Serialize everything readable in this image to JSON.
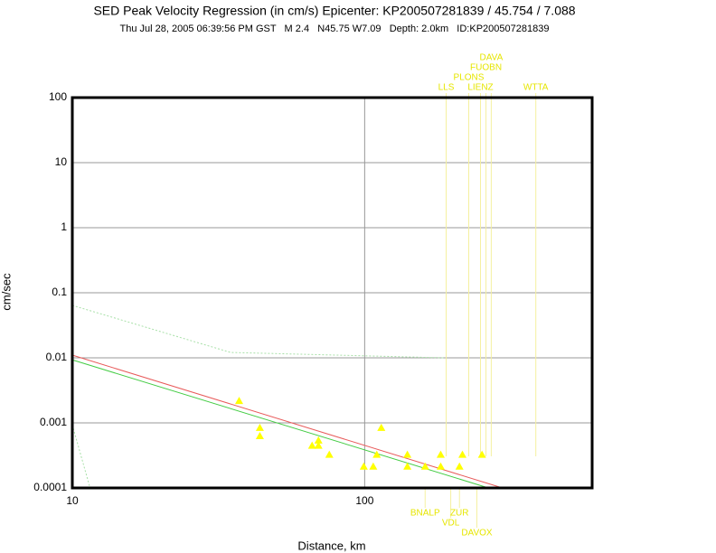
{
  "chart_data": {
    "type": "scatter",
    "title": "SED Peak Velocity Regression (in cm/s) Epicenter: KP200507281839 / 45.754 / 7.088",
    "subtitle": "Thu Jul 28, 2005 06:39:56 PM GST   M 2.4   N45.75 W7.09   Depth: 2.0km   ID:KP200507281839",
    "x_label": "Distance, km",
    "y_label": "cm/sec",
    "log_x": true,
    "log_y": true,
    "grid": true,
    "xlim": [
      10,
      600
    ],
    "ylim": [
      0.0001,
      100
    ],
    "xticks": [
      10,
      100
    ],
    "yticks": [
      100,
      10,
      1,
      0.1,
      0.01,
      0.001,
      0.0001
    ],
    "points": {
      "color": "#ffff00",
      "x": [
        37.2,
        43.8,
        43.8,
        66.1,
        69.5,
        69.5,
        75.7,
        99.3,
        107,
        110,
        114,
        140,
        140,
        161,
        182,
        182,
        211,
        216,
        252
      ],
      "values": [
        0.00215,
        0.00083,
        0.00062,
        0.00044,
        0.00053,
        0.00044,
        0.00032,
        0.00021,
        0.00021,
        0.00032,
        0.00083,
        0.00032,
        0.00021,
        0.00021,
        0.00032,
        0.00021,
        0.00021,
        0.00032,
        0.00032
      ]
    },
    "series": [
      {
        "color": "#e85a5a",
        "dashed": false,
        "x": [
          10,
          296
        ],
        "values": [
          0.011,
          0.0001
        ]
      },
      {
        "color": "#44cc44",
        "dashed": false,
        "x": [
          10,
          265
        ],
        "values": [
          0.0093,
          0.0001
        ]
      },
      {
        "color": "#a8e0a8",
        "dashed": true,
        "x": [
          10,
          34.8,
          186
        ],
        "values": [
          0.064,
          0.0121,
          0.01
        ]
      },
      {
        "color": "#a8e0a8",
        "dashed": true,
        "x": [
          10,
          11.5
        ],
        "values": [
          0.00093,
          0.0001
        ]
      }
    ],
    "stations_top": [
      {
        "name": "LLS",
        "distance": 190
      },
      {
        "name": "PLONS",
        "distance": 227
      },
      {
        "name": "LIENZ",
        "distance": 249
      },
      {
        "name": "FUOBN",
        "distance": 260
      },
      {
        "name": "DAVA",
        "distance": 271
      },
      {
        "name": "WTTA",
        "distance": 385
      }
    ],
    "stations_bottom": [
      {
        "name": "BNALP",
        "distance": 161
      },
      {
        "name": "VDL",
        "distance": 197
      },
      {
        "name": "ZUR",
        "distance": 211
      },
      {
        "name": "DAVOX",
        "distance": 242
      }
    ]
  }
}
